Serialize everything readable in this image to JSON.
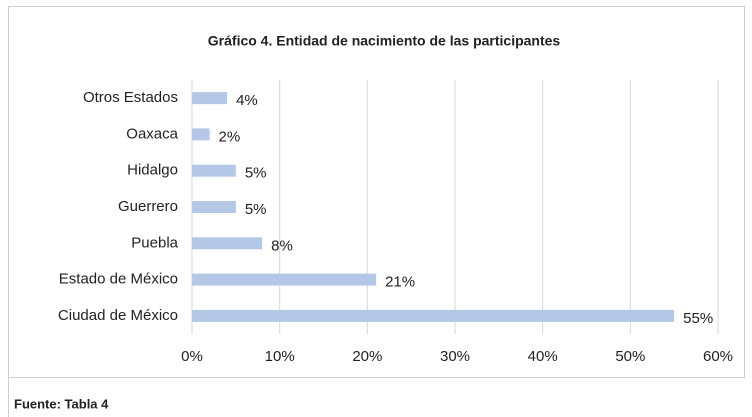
{
  "chart_data": {
    "type": "hbar",
    "title": "Gráfico 4. Entidad de nacimiento de las participantes",
    "categories": [
      "Otros Estados",
      "Oaxaca",
      "Hidalgo",
      "Guerrero",
      "Puebla",
      "Estado de México",
      "Ciudad de México"
    ],
    "values": [
      4,
      2,
      5,
      5,
      8,
      21,
      55
    ],
    "value_labels": [
      "4%",
      "2%",
      "5%",
      "5%",
      "8%",
      "21%",
      "55%"
    ],
    "color": "#b4c7e7",
    "xlim": [
      0,
      60
    ],
    "xticks": [
      {
        "value": 0,
        "label": "0%"
      },
      {
        "value": 10,
        "label": "10%"
      },
      {
        "value": 20,
        "label": "20%"
      },
      {
        "value": 30,
        "label": "30%"
      },
      {
        "value": 40,
        "label": "40%"
      },
      {
        "value": 50,
        "label": "50%"
      },
      {
        "value": 60,
        "label": "60%"
      }
    ],
    "grid": true
  },
  "footer": "Fuente: Tabla 4"
}
